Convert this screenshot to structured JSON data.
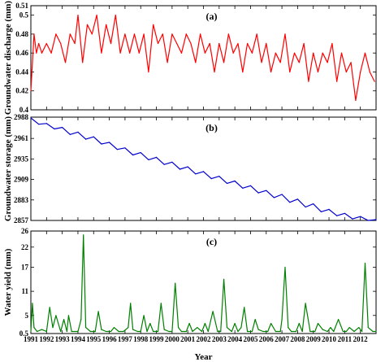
{
  "chart_data": [
    {
      "type": "line",
      "panel": "(a)",
      "ylabel": "Groundwater discharge (mm)",
      "color": "#ff0000",
      "ylim": [
        0.4,
        0.51
      ],
      "yticks": [
        "0.4",
        "0.42",
        "0.44",
        "0.46",
        "0.48",
        "0.5",
        "0.51"
      ],
      "xlim": [
        1991,
        2013
      ],
      "series": [
        {
          "x": [
            1991.0,
            1991.2,
            1991.35,
            1991.5,
            1991.7,
            1992.0,
            1992.3,
            1992.6,
            1992.9,
            1993.2,
            1993.5,
            1993.8,
            1994.0,
            1994.3,
            1994.6,
            1994.9,
            1995.2,
            1995.5,
            1995.8,
            1996.1,
            1996.4,
            1996.7,
            1997.0,
            1997.3,
            1997.6,
            1997.9,
            1998.2,
            1998.5,
            1998.8,
            1999.1,
            1999.4,
            1999.7,
            2000.0,
            2000.3,
            2000.6,
            2000.9,
            2001.2,
            2001.5,
            2001.8,
            2002.1,
            2002.4,
            2002.7,
            2003.0,
            2003.3,
            2003.6,
            2003.9,
            2004.2,
            2004.5,
            2004.8,
            2005.1,
            2005.4,
            2005.7,
            2006.0,
            2006.3,
            2006.6,
            2006.9,
            2007.2,
            2007.5,
            2007.8,
            2008.1,
            2008.4,
            2008.7,
            2009.0,
            2009.3,
            2009.6,
            2009.9,
            2010.2,
            2010.5,
            2010.8,
            2011.1,
            2011.4,
            2011.7,
            2012.0,
            2012.3,
            2012.6,
            2012.9
          ],
          "values": [
            0.42,
            0.48,
            0.46,
            0.47,
            0.46,
            0.47,
            0.46,
            0.48,
            0.47,
            0.45,
            0.48,
            0.47,
            0.5,
            0.45,
            0.49,
            0.48,
            0.5,
            0.46,
            0.49,
            0.47,
            0.5,
            0.46,
            0.48,
            0.46,
            0.48,
            0.46,
            0.48,
            0.44,
            0.49,
            0.47,
            0.48,
            0.45,
            0.48,
            0.47,
            0.46,
            0.48,
            0.47,
            0.45,
            0.48,
            0.46,
            0.47,
            0.44,
            0.47,
            0.45,
            0.48,
            0.46,
            0.47,
            0.44,
            0.47,
            0.46,
            0.48,
            0.45,
            0.47,
            0.44,
            0.46,
            0.45,
            0.48,
            0.44,
            0.46,
            0.45,
            0.47,
            0.43,
            0.46,
            0.44,
            0.46,
            0.45,
            0.47,
            0.43,
            0.46,
            0.44,
            0.45,
            0.41,
            0.44,
            0.46,
            0.44,
            0.43
          ]
        }
      ]
    },
    {
      "type": "line",
      "panel": "(b)",
      "ylabel": "Groundwater storage (mm)",
      "color": "#0000cc",
      "ylim": [
        2857,
        2988
      ],
      "yticks": [
        "2857",
        "2883",
        "2909",
        "2935",
        "2961",
        "2988"
      ],
      "xlim": [
        1991,
        2013
      ],
      "series": [
        {
          "x": [
            1991.0,
            1991.5,
            1992.0,
            1992.5,
            1993.0,
            1993.5,
            1994.0,
            1994.5,
            1995.0,
            1995.5,
            1996.0,
            1996.5,
            1997.0,
            1997.5,
            1998.0,
            1998.5,
            1999.0,
            1999.5,
            2000.0,
            2000.5,
            2001.0,
            2001.5,
            2002.0,
            2002.5,
            2003.0,
            2003.5,
            2004.0,
            2004.5,
            2005.0,
            2005.5,
            2006.0,
            2006.5,
            2007.0,
            2007.5,
            2008.0,
            2008.5,
            2009.0,
            2009.5,
            2010.0,
            2010.5,
            2011.0,
            2011.5,
            2012.0,
            2012.5,
            2013.0
          ],
          "values": [
            2987,
            2979,
            2980,
            2973,
            2975,
            2966,
            2969,
            2960,
            2963,
            2954,
            2956,
            2947,
            2949,
            2940,
            2943,
            2934,
            2937,
            2928,
            2931,
            2922,
            2925,
            2916,
            2919,
            2910,
            2913,
            2904,
            2907,
            2898,
            2901,
            2892,
            2895,
            2886,
            2890,
            2880,
            2884,
            2874,
            2878,
            2868,
            2871,
            2863,
            2866,
            2859,
            2862,
            2857,
            2858
          ]
        }
      ]
    },
    {
      "type": "line",
      "panel": "(c)",
      "ylabel": "Water yield (mm)",
      "xlabel": "Year",
      "color": "#008000",
      "ylim": [
        0.5,
        26
      ],
      "yticks": [
        "0.5",
        "5",
        "11",
        "17",
        "22",
        "26"
      ],
      "xlim": [
        1991,
        2013
      ],
      "categories": [
        "1991",
        "1992",
        "1993",
        "1994",
        "1995",
        "1996",
        "1997",
        "1998",
        "1999",
        "2000",
        "2001",
        "2002",
        "2003",
        "2004",
        "2005",
        "2006",
        "2007",
        "2008",
        "2009",
        "2010",
        "2011",
        "2012"
      ],
      "series": [
        {
          "x": [
            1991.0,
            1991.1,
            1991.2,
            1991.4,
            1991.7,
            1992.0,
            1992.2,
            1992.4,
            1992.6,
            1992.9,
            1993.1,
            1993.3,
            1993.4,
            1993.6,
            1994.0,
            1994.2,
            1994.35,
            1994.5,
            1994.8,
            1995.1,
            1995.3,
            1995.5,
            1995.8,
            1996.1,
            1996.3,
            1996.6,
            1996.9,
            1997.2,
            1997.35,
            1997.5,
            1997.8,
            1998.0,
            1998.2,
            1998.4,
            1998.6,
            1998.8,
            1999.1,
            1999.3,
            1999.5,
            1999.8,
            2000.0,
            2000.2,
            2000.4,
            2000.6,
            2000.9,
            2001.1,
            2001.3,
            2001.6,
            2001.9,
            2002.1,
            2002.3,
            2002.6,
            2002.9,
            2003.1,
            2003.3,
            2003.5,
            2003.8,
            2004.0,
            2004.2,
            2004.4,
            2004.6,
            2004.8,
            2005.1,
            2005.3,
            2005.5,
            2005.8,
            2006.1,
            2006.3,
            2006.6,
            2006.9,
            2007.0,
            2007.2,
            2007.4,
            2007.6,
            2007.9,
            2008.1,
            2008.3,
            2008.5,
            2008.8,
            2009.1,
            2009.3,
            2009.6,
            2009.9,
            2010.1,
            2010.3,
            2010.6,
            2010.9,
            2011.1,
            2011.3,
            2011.6,
            2011.9,
            2012.1,
            2012.3,
            2012.5,
            2012.8,
            2013.0
          ],
          "values": [
            1.0,
            8.0,
            2.0,
            1.0,
            1.5,
            1.0,
            7.0,
            2.0,
            5.0,
            1.0,
            4.0,
            1.0,
            5.0,
            1.0,
            1.0,
            4.0,
            25.0,
            2.0,
            1.0,
            1.0,
            6.0,
            1.5,
            1.0,
            1.0,
            2.0,
            1.0,
            1.0,
            2.0,
            8.0,
            1.5,
            1.0,
            1.0,
            5.0,
            1.0,
            3.0,
            1.0,
            1.0,
            8.0,
            1.5,
            1.0,
            1.0,
            13.0,
            2.0,
            1.0,
            1.0,
            3.0,
            1.0,
            2.0,
            1.0,
            3.0,
            1.0,
            6.0,
            1.0,
            1.0,
            14.0,
            2.0,
            1.0,
            3.0,
            1.0,
            2.0,
            7.0,
            1.0,
            1.0,
            4.0,
            1.5,
            1.0,
            1.0,
            3.0,
            1.0,
            1.0,
            4.0,
            17.0,
            2.0,
            1.0,
            1.0,
            3.0,
            1.0,
            8.0,
            1.0,
            1.0,
            3.0,
            1.5,
            1.0,
            2.0,
            1.0,
            4.0,
            1.0,
            1.0,
            2.0,
            1.0,
            2.0,
            1.0,
            18.0,
            2.0,
            1.0,
            1.0
          ]
        }
      ]
    }
  ]
}
